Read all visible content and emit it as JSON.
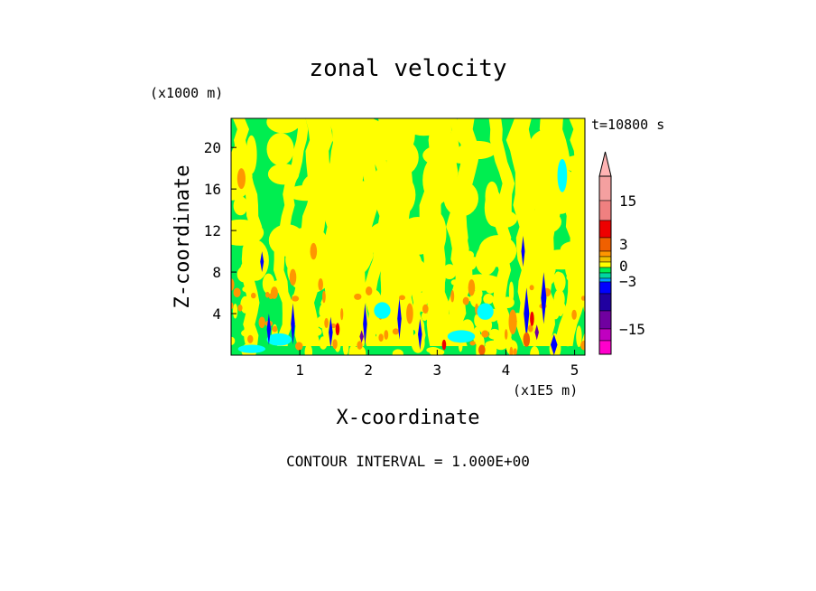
{
  "chart_data": {
    "type": "heatmap",
    "title": "zonal velocity",
    "xlabel": "X-coordinate",
    "ylabel": "Z-coordinate",
    "x_units": "(x1E5 m)",
    "y_units": "(x1000 m)",
    "time_label": "t=10800 s",
    "footer": "CONTOUR INTERVAL = 1.000E+00",
    "xlim": [
      0,
      5.15
    ],
    "ylim": [
      0,
      22.8
    ],
    "x_ticks": [
      "1",
      "2",
      "3",
      "4",
      "5"
    ],
    "x_tick_values": [
      1,
      2,
      3,
      4,
      5
    ],
    "y_ticks": [
      "4",
      "8",
      "12",
      "16",
      "20"
    ],
    "y_tick_values": [
      4,
      8,
      12,
      16,
      20
    ],
    "contour_interval": 1.0,
    "colorbar": {
      "ticks": [
        {
          "label": "15",
          "value": 15
        },
        {
          "label": "3",
          "value": 3
        },
        {
          "label": "0",
          "value": 0
        },
        {
          "label": "−3",
          "value": -3
        },
        {
          "label": "−15",
          "value": -15
        }
      ],
      "bins": [
        {
          "min": 20,
          "max": 25,
          "color": "#ffb4b4",
          "open_end": true
        },
        {
          "min": 15,
          "max": 20,
          "color": "#f4a0a0"
        },
        {
          "min": 10,
          "max": 15,
          "color": "#f08080"
        },
        {
          "min": 5,
          "max": 10,
          "color": "#ee0000"
        },
        {
          "min": 3,
          "max": 5,
          "color": "#f06000"
        },
        {
          "min": 2,
          "max": 3,
          "color": "#ff9600"
        },
        {
          "min": 1,
          "max": 2,
          "color": "#f0c000"
        },
        {
          "min": 0,
          "max": 1,
          "color": "#ffff00"
        },
        {
          "min": -1,
          "max": 0,
          "color": "#00ee50"
        },
        {
          "min": -2,
          "max": -1,
          "color": "#00d6a0"
        },
        {
          "min": -3,
          "max": -2,
          "color": "#00a0ff"
        },
        {
          "min": -5,
          "max": -3,
          "color": "#0000ff"
        },
        {
          "min": -10,
          "max": -5,
          "color": "#2000a0"
        },
        {
          "min": -15,
          "max": -10,
          "color": "#7000a0"
        },
        {
          "min": -20,
          "max": -15,
          "color": "#c000c0"
        },
        {
          "min": -25,
          "max": -20,
          "color": "#ff00cc"
        }
      ]
    },
    "field": {
      "dominant_colors": [
        "#ffff00",
        "#00ee50"
      ],
      "features": [
        {
          "kind": "patch",
          "color": "#00ffff",
          "x": 0.7,
          "z": 1.5,
          "rx": 0.18,
          "rz": 0.6
        },
        {
          "kind": "patch",
          "color": "#00ffff",
          "x": 2.2,
          "z": 4.3,
          "rx": 0.12,
          "rz": 0.8
        },
        {
          "kind": "patch",
          "color": "#00ffff",
          "x": 3.35,
          "z": 1.8,
          "rx": 0.2,
          "rz": 0.6
        },
        {
          "kind": "patch",
          "color": "#00ffff",
          "x": 3.7,
          "z": 4.2,
          "rx": 0.12,
          "rz": 0.8
        },
        {
          "kind": "patch",
          "color": "#00ffff",
          "x": 4.82,
          "z": 17.3,
          "rx": 0.07,
          "rz": 1.6
        },
        {
          "kind": "patch",
          "color": "#00ffff",
          "x": 0.3,
          "z": 0.6,
          "rx": 0.2,
          "rz": 0.4
        },
        {
          "kind": "streak",
          "color": "#0000ff",
          "x": 0.55,
          "z": 2.5,
          "w": 0.03,
          "h": 3.0
        },
        {
          "kind": "streak",
          "color": "#0000ff",
          "x": 0.9,
          "z": 3.0,
          "w": 0.03,
          "h": 4.0
        },
        {
          "kind": "streak",
          "color": "#0000ff",
          "x": 1.45,
          "z": 2.2,
          "w": 0.03,
          "h": 3.0
        },
        {
          "kind": "streak",
          "color": "#0000ff",
          "x": 1.95,
          "z": 3.0,
          "w": 0.03,
          "h": 4.0
        },
        {
          "kind": "streak",
          "color": "#0000ff",
          "x": 2.45,
          "z": 3.5,
          "w": 0.03,
          "h": 4.0
        },
        {
          "kind": "streak",
          "color": "#0000ff",
          "x": 2.75,
          "z": 2.0,
          "w": 0.03,
          "h": 3.0
        },
        {
          "kind": "streak",
          "color": "#0000ff",
          "x": 4.3,
          "z": 4.0,
          "w": 0.04,
          "h": 5.0
        },
        {
          "kind": "streak",
          "color": "#0000ff",
          "x": 4.55,
          "z": 5.5,
          "w": 0.04,
          "h": 5.0
        },
        {
          "kind": "streak",
          "color": "#0000ff",
          "x": 4.7,
          "z": 1.0,
          "w": 0.05,
          "h": 2.0
        },
        {
          "kind": "streak",
          "color": "#0000ff",
          "x": 4.25,
          "z": 10.0,
          "w": 0.02,
          "h": 3.0
        },
        {
          "kind": "streak",
          "color": "#0000ff",
          "x": 0.45,
          "z": 9.0,
          "w": 0.02,
          "h": 2.0
        },
        {
          "kind": "streak",
          "color": "#7000a0",
          "x": 4.45,
          "z": 2.2,
          "w": 0.03,
          "h": 1.5
        },
        {
          "kind": "streak",
          "color": "#7000a0",
          "x": 1.9,
          "z": 1.8,
          "w": 0.03,
          "h": 1.2
        },
        {
          "kind": "patch",
          "color": "#ff9600",
          "x": 0.15,
          "z": 17.0,
          "rx": 0.06,
          "rz": 1.0
        },
        {
          "kind": "patch",
          "color": "#ff9600",
          "x": 1.2,
          "z": 10.0,
          "rx": 0.05,
          "rz": 0.8
        },
        {
          "kind": "patch",
          "color": "#ff9600",
          "x": 2.6,
          "z": 4.0,
          "rx": 0.05,
          "rz": 1.0
        },
        {
          "kind": "patch",
          "color": "#ff9600",
          "x": 3.5,
          "z": 6.5,
          "rx": 0.05,
          "rz": 0.8
        },
        {
          "kind": "patch",
          "color": "#ff9600",
          "x": 4.1,
          "z": 3.2,
          "rx": 0.06,
          "rz": 1.2
        },
        {
          "kind": "patch",
          "color": "#ff9600",
          "x": 0.9,
          "z": 7.5,
          "rx": 0.05,
          "rz": 0.8
        },
        {
          "kind": "patch",
          "color": "#f06000",
          "x": 3.65,
          "z": 0.5,
          "rx": 0.05,
          "rz": 0.5
        },
        {
          "kind": "patch",
          "color": "#f06000",
          "x": 4.3,
          "z": 1.5,
          "rx": 0.05,
          "rz": 0.7
        },
        {
          "kind": "patch",
          "color": "#ee0000",
          "x": 4.38,
          "z": 3.5,
          "rx": 0.03,
          "rz": 0.7
        },
        {
          "kind": "patch",
          "color": "#ee0000",
          "x": 1.55,
          "z": 2.5,
          "rx": 0.03,
          "rz": 0.6
        },
        {
          "kind": "patch",
          "color": "#ee0000",
          "x": 3.1,
          "z": 1.0,
          "rx": 0.03,
          "rz": 0.5
        }
      ]
    }
  }
}
